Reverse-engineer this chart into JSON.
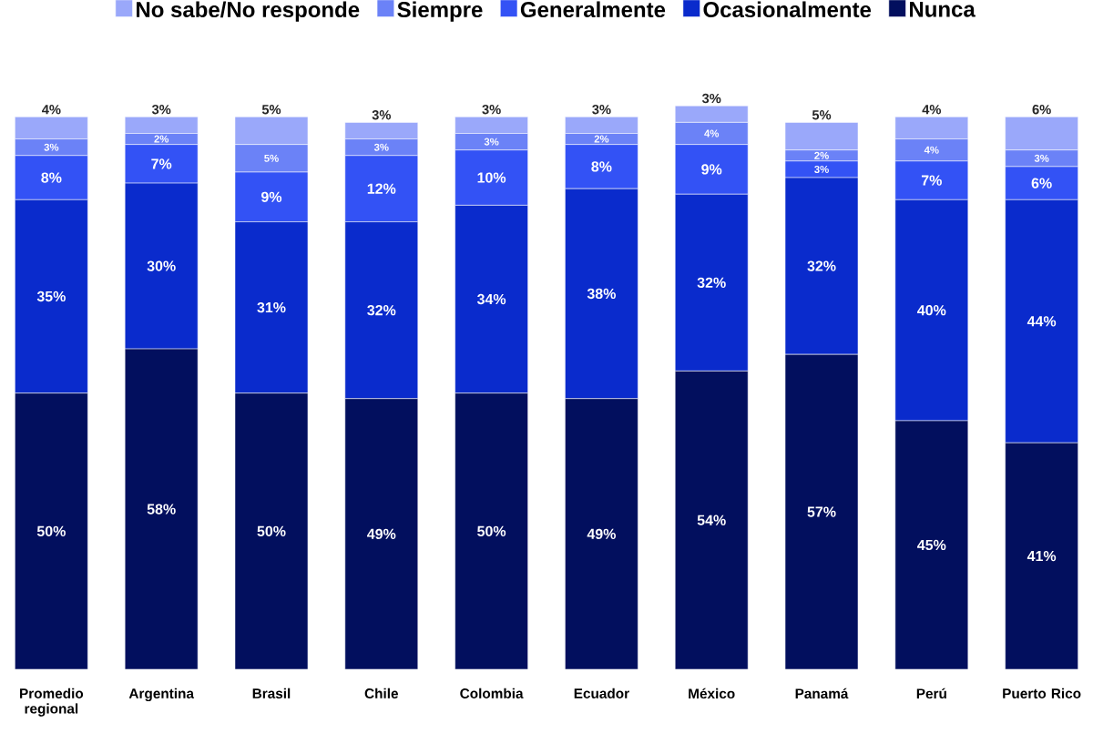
{
  "chart_data": {
    "type": "bar",
    "stacked": true,
    "legend": "top",
    "categories": [
      "Promedio regional",
      "Argentina",
      "Brasil",
      "Chile",
      "Colombia",
      "Ecuador",
      "México",
      "Panamá",
      "Perú",
      "Puerto Rico"
    ],
    "series": [
      {
        "name": "Nunca",
        "color": "#020f5e",
        "values": [
          50,
          58,
          50,
          49,
          50,
          49,
          54,
          57,
          45,
          41
        ],
        "value_labels": [
          "50%",
          "58%",
          "50%",
          "49%",
          "50%",
          "49%",
          "54%",
          "57%",
          "45%",
          "41%"
        ]
      },
      {
        "name": "Ocasionalmente",
        "color": "#0a2bcc",
        "values": [
          35,
          30,
          31,
          32,
          34,
          38,
          32,
          32,
          40,
          44
        ],
        "value_labels": [
          "35%",
          "30%",
          "31%",
          "32%",
          "34%",
          "38%",
          "32%",
          "32%",
          "40%",
          "44%"
        ]
      },
      {
        "name": "Generalmente",
        "color": "#3352f5",
        "values": [
          8,
          7,
          9,
          12,
          10,
          8,
          9,
          3,
          7,
          6
        ],
        "value_labels": [
          "8%",
          "7%",
          "9%",
          "12%",
          "10%",
          "8%",
          "9%",
          "3%",
          "7%",
          "6%"
        ]
      },
      {
        "name": "Siempre",
        "color": "#6b82f7",
        "values": [
          3,
          2,
          5,
          3,
          3,
          2,
          4,
          2,
          4,
          3
        ],
        "value_labels": [
          "3%",
          "2%",
          "5%",
          "3%",
          "3%",
          "2%",
          "4%",
          "2%",
          "4%",
          "3%"
        ]
      },
      {
        "name": "No sabe/No responde",
        "color": "#9aa8fa",
        "values": [
          4,
          3,
          5,
          3,
          3,
          3,
          3,
          5,
          4,
          6
        ],
        "value_labels": [
          "4%",
          "3%",
          "5%",
          "3%",
          "3%",
          "3%",
          "3%",
          "5%",
          "4%",
          "6%"
        ]
      }
    ]
  }
}
